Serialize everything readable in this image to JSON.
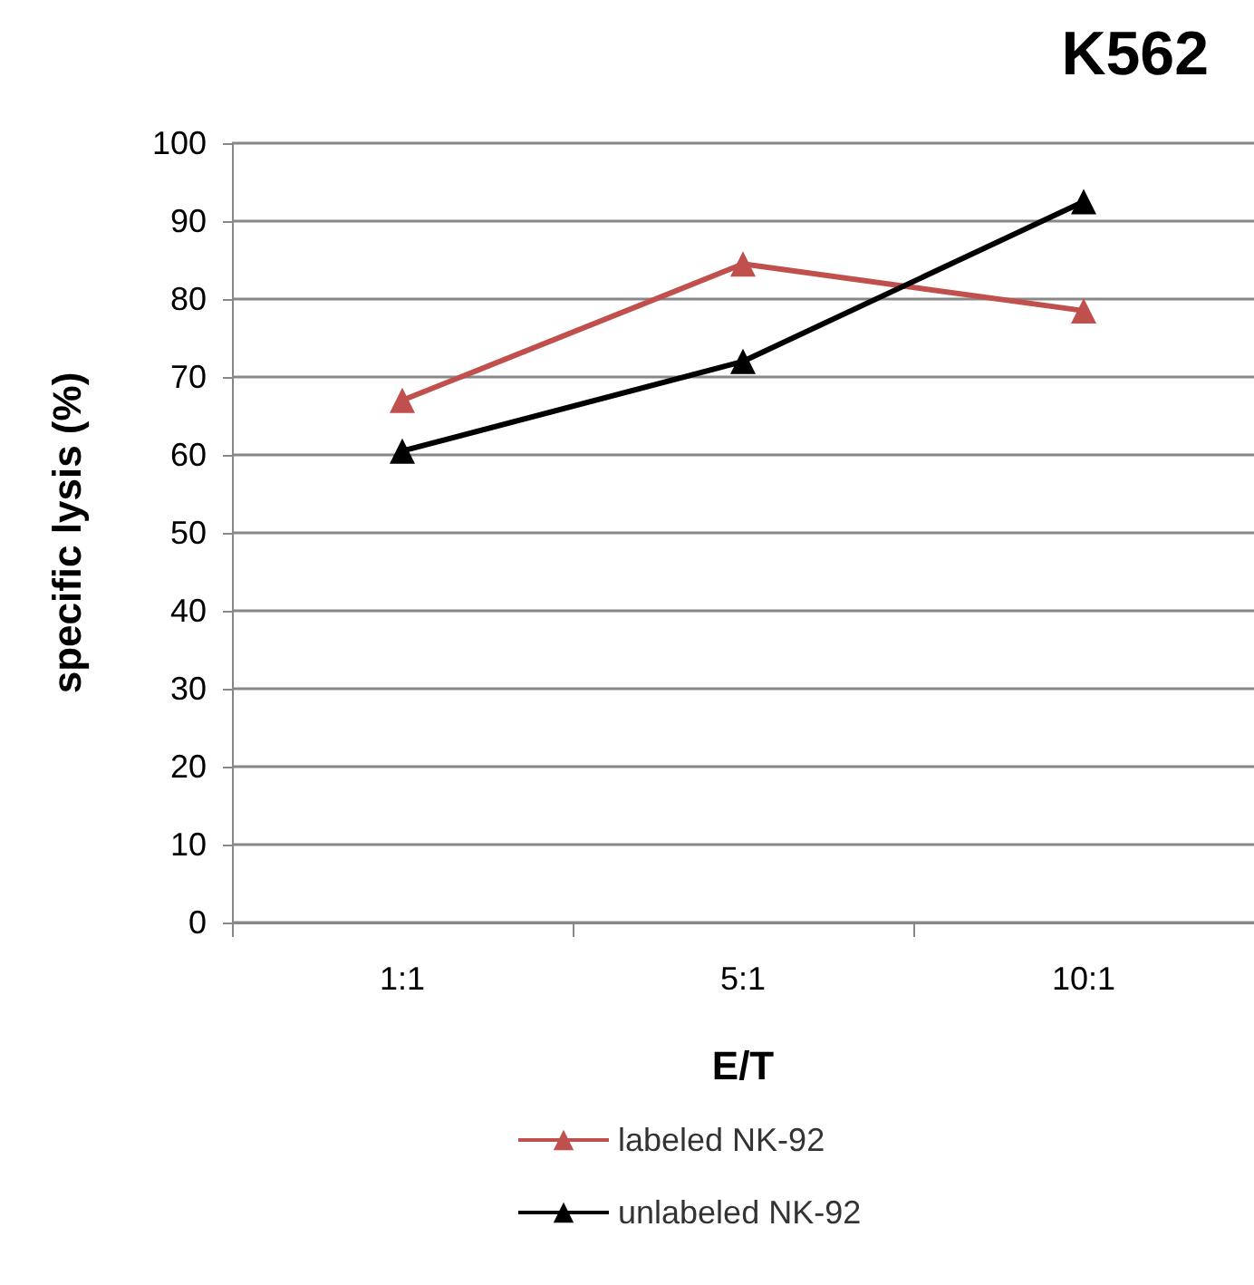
{
  "chart_data": {
    "type": "line",
    "title": "K562",
    "xlabel": "E/T",
    "ylabel": "specific lysis (%)",
    "categories": [
      "1:1",
      "5:1",
      "10:1"
    ],
    "series": [
      {
        "name": "labeled NK-92",
        "color": "#c0504d",
        "values": [
          67,
          84.5,
          78.5
        ]
      },
      {
        "name": "unlabeled NK-92",
        "color": "#000000",
        "values": [
          60.5,
          72,
          92.5
        ]
      }
    ],
    "ylim": [
      0,
      100
    ],
    "yticks": [
      0,
      10,
      20,
      30,
      40,
      50,
      60,
      70,
      80,
      90,
      100
    ],
    "grid": "y",
    "legend": "bottom",
    "marker": "triangle",
    "line_style": "solid"
  }
}
